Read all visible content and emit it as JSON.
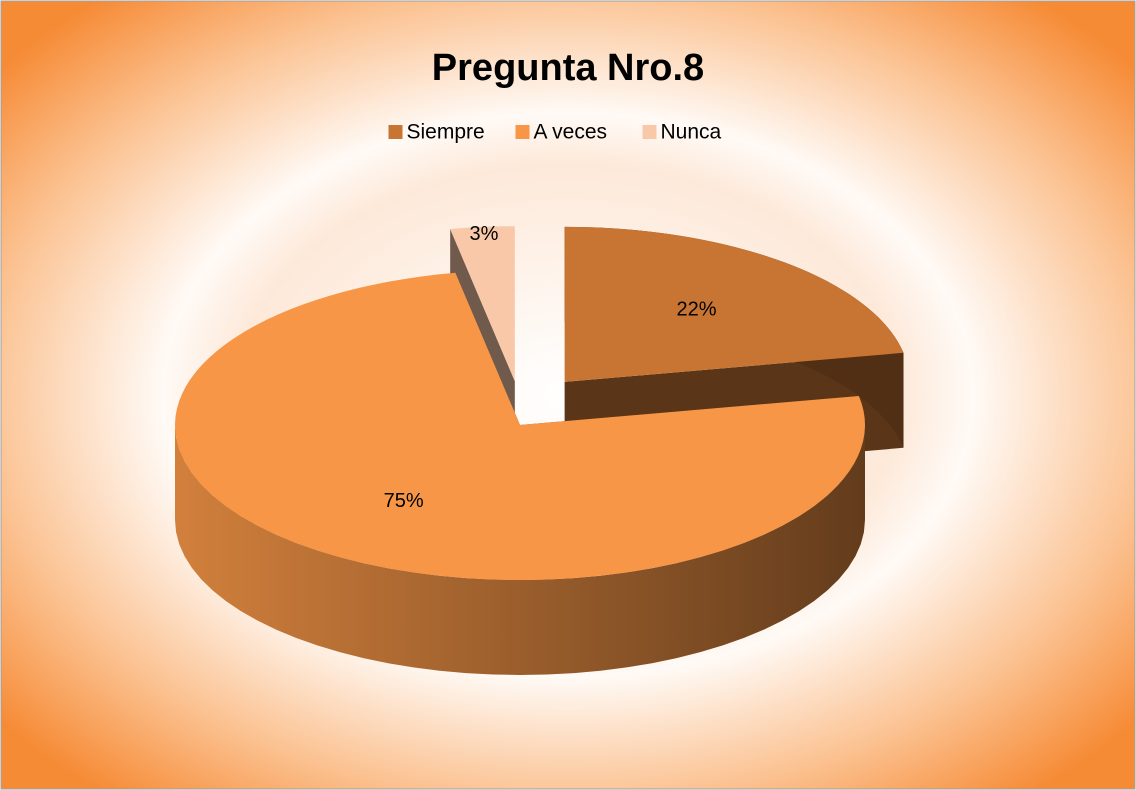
{
  "chart_data": {
    "type": "pie",
    "title": "Pregunta Nro.8",
    "categories": [
      "Siempre",
      "A veces",
      "Nunca"
    ],
    "values": [
      22,
      75,
      3
    ],
    "value_labels": [
      "22%",
      "75%",
      "3%"
    ],
    "colors": [
      "#c87533",
      "#f79646",
      "#f9c8a8"
    ],
    "legend": "top"
  }
}
